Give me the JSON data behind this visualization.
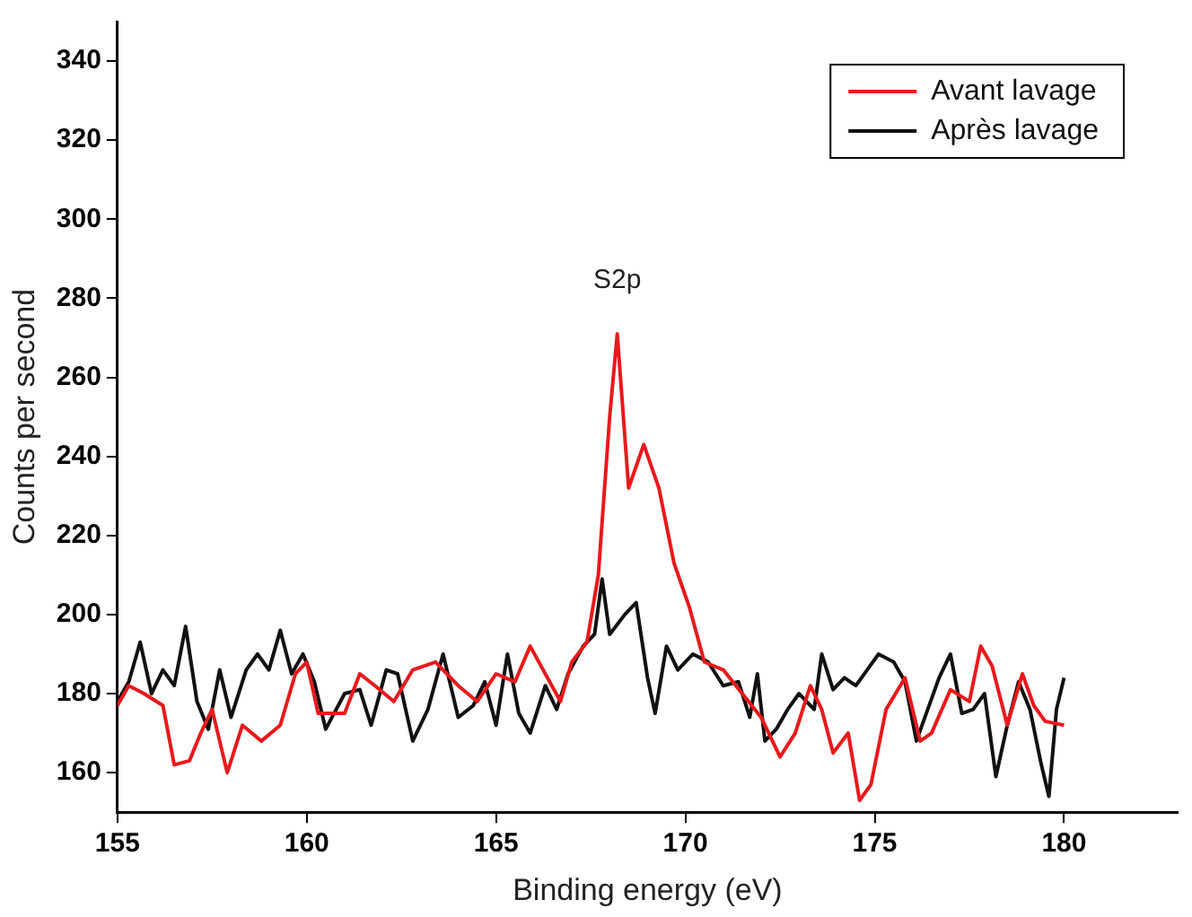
{
  "chart_data": {
    "type": "line",
    "xlabel": "Binding energy (eV)",
    "ylabel": "Counts per second",
    "xlim": [
      155,
      183
    ],
    "xticks": [
      155,
      160,
      165,
      170,
      175,
      180
    ],
    "ylim": [
      150,
      350
    ],
    "yticks": [
      160,
      180,
      200,
      220,
      240,
      260,
      280,
      300,
      320,
      340
    ],
    "grid": false,
    "legend": "top right",
    "marker": "none",
    "line_style": "solid",
    "annotations": [
      {
        "text": "S2p",
        "x": 168.2,
        "y": 271
      }
    ],
    "series": [
      {
        "name": "Avant lavage",
        "color": "#e8191c",
        "x": [
          155,
          155.3,
          155.7,
          156.2,
          156.5,
          156.9,
          157.2,
          157.5,
          157.9,
          158.3,
          158.8,
          159.3,
          159.7,
          160,
          160.3,
          161,
          161.4,
          161.8,
          162.3,
          162.8,
          163.4,
          164,
          164.5,
          165,
          165.5,
          165.9,
          166.3,
          166.7,
          167,
          167.4,
          167.7,
          168,
          168.2,
          168.5,
          168.9,
          169.3,
          169.7,
          170.1,
          170.5,
          171,
          171.5,
          172,
          172.5,
          172.9,
          173.3,
          173.6,
          173.9,
          174.3,
          174.6,
          174.9,
          175.3,
          175.8,
          176.2,
          176.5,
          177,
          177.5,
          177.8,
          178.1,
          178.5,
          178.9,
          179.2,
          179.5,
          180
        ],
        "values": [
          177,
          182,
          180,
          177,
          162,
          163,
          170,
          176,
          160,
          172,
          168,
          172,
          185,
          188,
          175,
          175,
          185,
          182,
          178,
          186,
          188,
          182,
          178,
          185,
          183,
          192,
          185,
          178,
          188,
          193,
          210,
          250,
          271,
          232,
          243,
          232,
          213,
          202,
          188,
          186,
          180,
          174,
          164,
          170,
          182,
          176,
          165,
          170,
          153,
          157,
          176,
          184,
          168,
          170,
          181,
          178,
          192,
          187,
          172,
          185,
          177,
          173,
          172
        ]
      },
      {
        "name": "Après lavage",
        "color": "#111111",
        "x": [
          155,
          155.3,
          155.6,
          155.9,
          156.2,
          156.5,
          156.8,
          157.1,
          157.4,
          157.7,
          158,
          158.4,
          158.7,
          159,
          159.3,
          159.6,
          159.9,
          160.2,
          160.5,
          161,
          161.4,
          161.7,
          162.1,
          162.4,
          162.8,
          163.2,
          163.6,
          164,
          164.4,
          164.7,
          165,
          165.3,
          165.6,
          165.9,
          166.3,
          166.6,
          166.9,
          167.3,
          167.6,
          167.8,
          168,
          168.4,
          168.7,
          169,
          169.2,
          169.5,
          169.8,
          170.2,
          170.6,
          171,
          171.4,
          171.7,
          171.9,
          172.1,
          172.4,
          172.7,
          173,
          173.4,
          173.6,
          173.9,
          174.2,
          174.5,
          174.8,
          175.1,
          175.5,
          175.8,
          176.1,
          176.4,
          176.7,
          177,
          177.3,
          177.6,
          177.9,
          178.2,
          178.5,
          178.8,
          179.1,
          179.4,
          179.6,
          179.8,
          180
        ],
        "values": [
          178,
          183,
          193,
          180,
          186,
          182,
          197,
          178,
          171,
          186,
          174,
          186,
          190,
          186,
          196,
          185,
          190,
          183,
          171,
          180,
          181,
          172,
          186,
          185,
          168,
          176,
          190,
          174,
          177,
          183,
          172,
          190,
          175,
          170,
          182,
          176,
          185,
          192,
          195,
          209,
          195,
          200,
          203,
          184,
          175,
          192,
          186,
          190,
          188,
          182,
          183,
          174,
          185,
          168,
          171,
          176,
          180,
          176,
          190,
          181,
          184,
          182,
          186,
          190,
          188,
          183,
          168,
          176,
          184,
          190,
          175,
          176,
          180,
          159,
          172,
          183,
          176,
          162,
          154,
          176,
          184
        ]
      }
    ]
  }
}
